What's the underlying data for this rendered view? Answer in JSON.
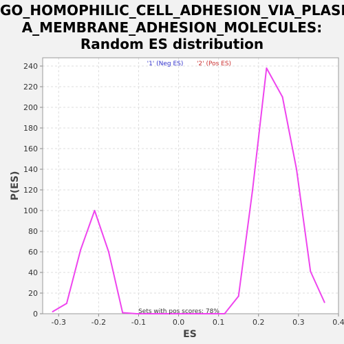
{
  "chart_data": {
    "type": "line",
    "title_lines": [
      "GO_HOMOPHILIC_CELL_ADHESION_VIA_PLASM",
      "A_MEMBRANE_ADHESION_MOLECULES:",
      "Random ES distribution"
    ],
    "xlabel": "ES",
    "ylabel": "P(ES)",
    "xlim": [
      -0.34,
      0.4
    ],
    "ylim": [
      0,
      248
    ],
    "x_ticks": [
      -0.3,
      -0.2,
      -0.1,
      0.0,
      0.1,
      0.2,
      0.3,
      0.4
    ],
    "x_tick_labels": [
      "-0.3",
      "-0.2",
      "-0.1",
      "0.0",
      "0.1",
      "0.2",
      "0.3",
      "0.4"
    ],
    "y_ticks": [
      0,
      20,
      40,
      60,
      80,
      100,
      120,
      140,
      160,
      180,
      200,
      220,
      240
    ],
    "grid": true,
    "legend": [
      {
        "label": "'1' (Neg ES)",
        "color": "#3333cc"
      },
      {
        "label": "'2' (Pos ES)",
        "color": "#cc3333"
      }
    ],
    "annotation": "Sets with pos scores: 78%",
    "series": [
      {
        "color": "#ee44ee",
        "x": [
          -0.315,
          -0.28,
          -0.245,
          -0.21,
          -0.175,
          -0.14,
          -0.105,
          -0.07,
          -0.035,
          0.0,
          0.035,
          0.07,
          0.115,
          0.15,
          0.185,
          0.22,
          0.26,
          0.295,
          0.33,
          0.365
        ],
        "y": [
          2,
          10,
          62,
          100,
          60,
          1,
          0,
          0,
          0,
          0,
          0,
          0,
          0,
          17,
          120,
          238,
          210,
          140,
          41,
          11
        ]
      }
    ]
  }
}
